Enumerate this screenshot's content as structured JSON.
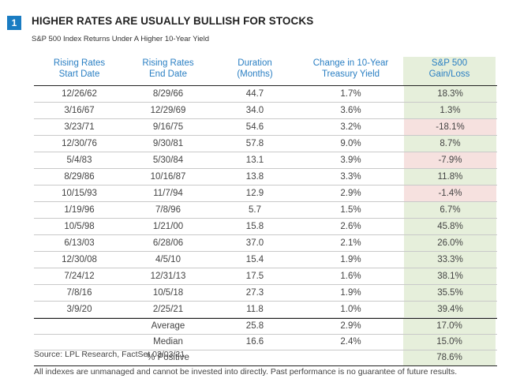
{
  "figure": {
    "number": "1",
    "title": "HIGHER RATES ARE USUALLY BULLISH FOR STOCKS",
    "subtitle": "S&P 500 Index Returns Under A Higher 10-Year Yield"
  },
  "table": {
    "headers": [
      {
        "line1": "Rising Rates",
        "line2": "Start Date"
      },
      {
        "line1": "Rising Rates",
        "line2": "End Date"
      },
      {
        "line1": "Duration",
        "line2": "(Months)"
      },
      {
        "line1": "Change in 10-Year",
        "line2": "Treasury Yield"
      },
      {
        "line1": "S&P 500",
        "line2": "Gain/Loss"
      }
    ],
    "rows": [
      {
        "start": "12/26/62",
        "end": "8/29/66",
        "duration": "44.7",
        "change": "1.7%",
        "gain": "18.3%",
        "sign": "pos"
      },
      {
        "start": "3/16/67",
        "end": "12/29/69",
        "duration": "34.0",
        "change": "3.6%",
        "gain": "1.3%",
        "sign": "pos"
      },
      {
        "start": "3/23/71",
        "end": "9/16/75",
        "duration": "54.6",
        "change": "3.2%",
        "gain": "-18.1%",
        "sign": "neg"
      },
      {
        "start": "12/30/76",
        "end": "9/30/81",
        "duration": "57.8",
        "change": "9.0%",
        "gain": "8.7%",
        "sign": "pos"
      },
      {
        "start": "5/4/83",
        "end": "5/30/84",
        "duration": "13.1",
        "change": "3.9%",
        "gain": "-7.9%",
        "sign": "neg"
      },
      {
        "start": "8/29/86",
        "end": "10/16/87",
        "duration": "13.8",
        "change": "3.3%",
        "gain": "11.8%",
        "sign": "pos"
      },
      {
        "start": "10/15/93",
        "end": "11/7/94",
        "duration": "12.9",
        "change": "2.9%",
        "gain": "-1.4%",
        "sign": "neg"
      },
      {
        "start": "1/19/96",
        "end": "7/8/96",
        "duration": "5.7",
        "change": "1.5%",
        "gain": "6.7%",
        "sign": "pos"
      },
      {
        "start": "10/5/98",
        "end": "1/21/00",
        "duration": "15.8",
        "change": "2.6%",
        "gain": "45.8%",
        "sign": "pos"
      },
      {
        "start": "6/13/03",
        "end": "6/28/06",
        "duration": "37.0",
        "change": "2.1%",
        "gain": "26.0%",
        "sign": "pos"
      },
      {
        "start": "12/30/08",
        "end": "4/5/10",
        "duration": "15.4",
        "change": "1.9%",
        "gain": "33.3%",
        "sign": "pos"
      },
      {
        "start": "7/24/12",
        "end": "12/31/13",
        "duration": "17.5",
        "change": "1.6%",
        "gain": "38.1%",
        "sign": "pos"
      },
      {
        "start": "7/8/16",
        "end": "10/5/18",
        "duration": "27.3",
        "change": "1.9%",
        "gain": "35.5%",
        "sign": "pos"
      },
      {
        "start": "3/9/20",
        "end": "2/25/21",
        "duration": "11.8",
        "change": "1.0%",
        "gain": "39.4%",
        "sign": "pos"
      }
    ],
    "summary": [
      {
        "label": "Average",
        "duration": "25.8",
        "change": "2.9%",
        "gain": "17.0%"
      },
      {
        "label": "Median",
        "duration": "16.6",
        "change": "2.4%",
        "gain": "15.0%"
      },
      {
        "label": "% Positive",
        "duration": "",
        "change": "",
        "gain": "78.6%"
      }
    ]
  },
  "colors": {
    "accent": "#1a7cc2",
    "header_text": "#2a7fc3",
    "positive_fill": "#e6efdb",
    "negative_fill": "#f6e1df"
  },
  "footer": {
    "source": "Source: LPL Research, FactSet 03/03/21",
    "disclaimer": "All indexes are unmanaged and cannot be invested into directly. Past performance is no guarantee of future results."
  }
}
